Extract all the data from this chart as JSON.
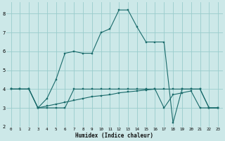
{
  "xlabel": "Humidex (Indice chaleur)",
  "bg_color": "#cce8e8",
  "grid_color": "#99cccc",
  "line_color": "#1a6b6b",
  "xlim": [
    -0.5,
    23.5
  ],
  "ylim": [
    2.0,
    8.6
  ],
  "yticks": [
    2,
    3,
    4,
    5,
    6,
    7,
    8
  ],
  "xticks": [
    0,
    1,
    2,
    3,
    4,
    5,
    6,
    7,
    8,
    9,
    10,
    11,
    12,
    13,
    14,
    15,
    16,
    17,
    18,
    19,
    20,
    21,
    22,
    23
  ],
  "series1_x": [
    0,
    1,
    2,
    3,
    4,
    5,
    6,
    7,
    8,
    9,
    10,
    11,
    12,
    13,
    14,
    15,
    16,
    17,
    18,
    19,
    20,
    21,
    22,
    23
  ],
  "series1_y": [
    4.0,
    4.0,
    4.0,
    3.0,
    3.0,
    3.0,
    3.0,
    4.0,
    4.0,
    4.0,
    4.0,
    4.0,
    4.0,
    4.0,
    4.0,
    4.0,
    4.0,
    4.0,
    4.0,
    4.0,
    4.0,
    4.0,
    3.0,
    3.0
  ],
  "series2_x": [
    0,
    1,
    2,
    3,
    4,
    5,
    6,
    7,
    8,
    9,
    10,
    11,
    12,
    13,
    14,
    15,
    16,
    17,
    18,
    19,
    20,
    21,
    22,
    23
  ],
  "series2_y": [
    4.0,
    4.0,
    4.0,
    3.0,
    3.1,
    3.2,
    3.3,
    3.4,
    3.5,
    3.6,
    3.65,
    3.7,
    3.8,
    3.85,
    3.9,
    3.95,
    4.0,
    3.0,
    3.7,
    3.8,
    3.9,
    3.0,
    3.0,
    3.0
  ],
  "series3_x": [
    0,
    1,
    2,
    3,
    4,
    5,
    6,
    7,
    8,
    9,
    10,
    11,
    12,
    13,
    14,
    15,
    16,
    17,
    18,
    19,
    20,
    21,
    22,
    23
  ],
  "series3_y": [
    4.0,
    4.0,
    4.0,
    3.0,
    3.5,
    4.5,
    5.9,
    6.0,
    5.9,
    5.9,
    7.0,
    7.2,
    8.2,
    8.2,
    7.3,
    6.5,
    6.5,
    6.5,
    2.2,
    4.0,
    4.0,
    4.0,
    3.0,
    3.0
  ]
}
